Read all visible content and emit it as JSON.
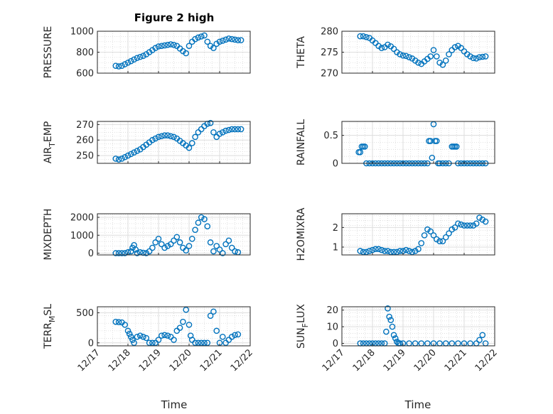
{
  "figure": {
    "title": "Figure 2 high",
    "marker_color": "#0072BD",
    "time_label": "Time",
    "time_ticks": [
      "12/17",
      "12/18",
      "12/19",
      "12/20",
      "12/21",
      "12/22"
    ]
  },
  "chart_data": [
    {
      "type": "scatter",
      "ylabel": "PRESSURE",
      "ylim": [
        600,
        1000
      ],
      "yticks": [
        600,
        800,
        1000
      ],
      "xlim": [
        0,
        5
      ],
      "grid": true,
      "x": [
        0.6,
        0.7,
        0.8,
        0.9,
        1.0,
        1.1,
        1.2,
        1.3,
        1.4,
        1.5,
        1.6,
        1.7,
        1.8,
        1.9,
        2.0,
        2.1,
        2.2,
        2.3,
        2.4,
        2.5,
        2.6,
        2.7,
        2.8,
        2.9,
        3.0,
        3.1,
        3.2,
        3.3,
        3.4,
        3.5,
        3.6,
        3.7,
        3.8,
        3.9,
        4.0,
        4.1,
        4.2,
        4.3,
        4.4,
        4.5,
        4.6,
        4.7
      ],
      "y": [
        670,
        665,
        670,
        685,
        700,
        715,
        730,
        745,
        755,
        765,
        780,
        800,
        820,
        840,
        855,
        860,
        865,
        870,
        875,
        870,
        860,
        835,
        810,
        790,
        860,
        900,
        925,
        940,
        950,
        960,
        900,
        860,
        840,
        880,
        900,
        910,
        920,
        930,
        925,
        920,
        915,
        915
      ]
    },
    {
      "type": "scatter",
      "ylabel": "THETA",
      "ylim": [
        270,
        280
      ],
      "yticks": [
        270,
        275,
        280
      ],
      "xlim": [
        0,
        5
      ],
      "grid": true,
      "x": [
        0.6,
        0.7,
        0.8,
        0.9,
        1.0,
        1.1,
        1.2,
        1.3,
        1.4,
        1.5,
        1.6,
        1.7,
        1.8,
        1.9,
        2.0,
        2.1,
        2.2,
        2.3,
        2.4,
        2.5,
        2.6,
        2.7,
        2.8,
        2.9,
        3.0,
        3.1,
        3.2,
        3.3,
        3.4,
        3.5,
        3.6,
        3.7,
        3.8,
        3.9,
        4.0,
        4.1,
        4.2,
        4.3,
        4.4,
        4.5,
        4.6,
        4.7
      ],
      "y": [
        278.8,
        278.8,
        278.6,
        278.4,
        277.8,
        277.2,
        276.5,
        276.0,
        276.2,
        276.8,
        276.4,
        275.8,
        275.0,
        274.5,
        274.2,
        274.1,
        273.8,
        273.5,
        273.0,
        272.5,
        272.2,
        272.8,
        273.4,
        274.0,
        275.5,
        274.0,
        272.5,
        272.0,
        273.0,
        274.5,
        275.5,
        276.2,
        276.5,
        276.0,
        275.2,
        274.5,
        274.0,
        273.6,
        273.5,
        273.8,
        273.9,
        274.0
      ]
    },
    {
      "type": "scatter",
      "ylabel": "AIR_TEMP",
      "ylim": [
        245,
        272
      ],
      "yticks": [
        250,
        260,
        270
      ],
      "xlim": [
        0,
        5
      ],
      "grid": true,
      "x": [
        0.6,
        0.7,
        0.8,
        0.9,
        1.0,
        1.1,
        1.2,
        1.3,
        1.4,
        1.5,
        1.6,
        1.7,
        1.8,
        1.9,
        2.0,
        2.1,
        2.2,
        2.3,
        2.4,
        2.5,
        2.6,
        2.7,
        2.8,
        2.9,
        3.0,
        3.1,
        3.2,
        3.3,
        3.4,
        3.5,
        3.6,
        3.7,
        3.8,
        3.9,
        4.0,
        4.1,
        4.2,
        4.3,
        4.4,
        4.5,
        4.6,
        4.7
      ],
      "y": [
        248,
        247.5,
        248,
        249,
        250,
        251,
        252,
        253,
        254,
        255.5,
        257,
        258.5,
        260,
        261,
        262,
        262.5,
        263,
        263,
        262.5,
        262,
        261,
        259.5,
        258,
        256.5,
        255,
        258,
        262,
        265,
        267,
        269,
        270.5,
        271,
        265,
        262,
        264,
        265,
        266,
        266.5,
        267,
        267,
        267,
        267
      ]
    },
    {
      "type": "scatter",
      "ylabel": "RAINFALL",
      "ylim": [
        0,
        0.75
      ],
      "yticks": [
        0,
        0.5
      ],
      "xlim": [
        0,
        5
      ],
      "grid": true,
      "x": [
        0.55,
        0.6,
        0.65,
        0.7,
        0.75,
        0.8,
        0.9,
        1.0,
        1.1,
        1.2,
        1.3,
        1.4,
        1.5,
        1.6,
        1.7,
        1.8,
        1.9,
        2.0,
        2.1,
        2.2,
        2.3,
        2.4,
        2.5,
        2.6,
        2.7,
        2.8,
        2.85,
        2.9,
        2.95,
        3.0,
        3.05,
        3.1,
        3.15,
        3.2,
        3.3,
        3.4,
        3.5,
        3.6,
        3.65,
        3.7,
        3.75,
        3.8,
        3.9,
        4.0,
        4.1,
        4.2,
        4.3,
        4.4,
        4.5,
        4.6,
        4.7
      ],
      "y": [
        0.2,
        0.2,
        0.3,
        0.3,
        0.3,
        0,
        0,
        0,
        0,
        0,
        0,
        0,
        0,
        0,
        0,
        0,
        0,
        0,
        0,
        0,
        0,
        0,
        0,
        0,
        0,
        0,
        0.4,
        0.4,
        0.1,
        0.7,
        0.4,
        0.4,
        0,
        0,
        0,
        0,
        0,
        0.3,
        0.3,
        0.3,
        0.3,
        0,
        0,
        0,
        0,
        0,
        0,
        0,
        0,
        0,
        0
      ]
    },
    {
      "type": "scatter",
      "ylabel": "MIXDEPTH",
      "ylim": [
        -100,
        2200
      ],
      "yticks": [
        0,
        1000,
        2000
      ],
      "xlim": [
        0,
        5
      ],
      "grid": true,
      "x": [
        0.6,
        0.7,
        0.8,
        0.9,
        1.0,
        1.1,
        1.15,
        1.2,
        1.25,
        1.3,
        1.4,
        1.5,
        1.6,
        1.7,
        1.8,
        1.9,
        2.0,
        2.1,
        2.2,
        2.3,
        2.4,
        2.5,
        2.6,
        2.7,
        2.8,
        2.9,
        3.0,
        3.1,
        3.2,
        3.3,
        3.4,
        3.5,
        3.6,
        3.7,
        3.8,
        3.9,
        4.0,
        4.1,
        4.2,
        4.3,
        4.4,
        4.5,
        4.6
      ],
      "y": [
        0,
        0,
        0,
        0,
        50,
        100,
        300,
        450,
        200,
        0,
        50,
        20,
        0,
        100,
        300,
        600,
        800,
        500,
        300,
        400,
        500,
        700,
        900,
        600,
        300,
        150,
        400,
        800,
        1300,
        1700,
        2000,
        1900,
        1500,
        600,
        100,
        400,
        200,
        0,
        500,
        700,
        300,
        100,
        50
      ]
    },
    {
      "type": "scatter",
      "ylabel": "H2OMIXRA",
      "ylim": [
        0.6,
        2.7
      ],
      "yticks": [
        1,
        2
      ],
      "xlim": [
        0,
        5
      ],
      "grid": true,
      "x": [
        0.6,
        0.7,
        0.8,
        0.9,
        1.0,
        1.1,
        1.2,
        1.3,
        1.4,
        1.5,
        1.6,
        1.7,
        1.8,
        1.9,
        2.0,
        2.1,
        2.2,
        2.3,
        2.4,
        2.5,
        2.6,
        2.7,
        2.8,
        2.9,
        3.0,
        3.1,
        3.2,
        3.3,
        3.4,
        3.5,
        3.6,
        3.7,
        3.8,
        3.9,
        4.0,
        4.1,
        4.2,
        4.3,
        4.4,
        4.5,
        4.6,
        4.7
      ],
      "y": [
        0.8,
        0.75,
        0.75,
        0.8,
        0.85,
        0.9,
        0.9,
        0.85,
        0.8,
        0.8,
        0.75,
        0.75,
        0.75,
        0.8,
        0.8,
        0.85,
        0.8,
        0.75,
        0.8,
        0.9,
        1.2,
        1.6,
        1.9,
        1.8,
        1.6,
        1.4,
        1.3,
        1.3,
        1.5,
        1.7,
        1.9,
        2.0,
        2.2,
        2.15,
        2.1,
        2.1,
        2.1,
        2.1,
        2.2,
        2.5,
        2.4,
        2.3
      ]
    },
    {
      "type": "scatter",
      "ylabel": "TERR_MSL",
      "ylim": [
        -50,
        600
      ],
      "yticks": [
        0,
        500
      ],
      "xlim": [
        0,
        5
      ],
      "grid": true,
      "x": [
        0.6,
        0.7,
        0.8,
        0.9,
        1.0,
        1.05,
        1.1,
        1.15,
        1.2,
        1.3,
        1.4,
        1.5,
        1.6,
        1.7,
        1.8,
        1.9,
        2.0,
        2.1,
        2.2,
        2.3,
        2.4,
        2.5,
        2.6,
        2.7,
        2.8,
        2.9,
        3.0,
        3.05,
        3.1,
        3.2,
        3.3,
        3.4,
        3.5,
        3.6,
        3.7,
        3.8,
        3.9,
        4.0,
        4.1,
        4.2,
        4.3,
        4.4,
        4.5,
        4.6
      ],
      "y": [
        350,
        345,
        340,
        300,
        200,
        150,
        100,
        50,
        0,
        100,
        120,
        100,
        80,
        0,
        0,
        0,
        50,
        120,
        130,
        120,
        100,
        50,
        200,
        250,
        350,
        550,
        300,
        120,
        50,
        0,
        0,
        0,
        0,
        0,
        450,
        520,
        200,
        0,
        100,
        0,
        50,
        100,
        130,
        140
      ]
    },
    {
      "type": "scatter",
      "ylabel": "SUN_FLUX",
      "ylim": [
        -1.5,
        22
      ],
      "yticks": [
        0,
        10,
        20
      ],
      "xlim": [
        0,
        5
      ],
      "grid": true,
      "x": [
        0.6,
        0.7,
        0.8,
        0.9,
        1.0,
        1.1,
        1.2,
        1.3,
        1.4,
        1.45,
        1.5,
        1.55,
        1.6,
        1.65,
        1.7,
        1.75,
        1.8,
        1.85,
        1.9,
        2.0,
        2.2,
        2.4,
        2.6,
        2.8,
        3.0,
        3.2,
        3.4,
        3.6,
        3.8,
        4.0,
        4.2,
        4.4,
        4.5,
        4.6,
        4.7
      ],
      "y": [
        0,
        0,
        0,
        0,
        0,
        0,
        0,
        0,
        0,
        7,
        21,
        16,
        14,
        10,
        5,
        3,
        1,
        0,
        0,
        0,
        0,
        0,
        0,
        0,
        0,
        0,
        0,
        0,
        0,
        0,
        0,
        0,
        2,
        5,
        0
      ]
    }
  ]
}
